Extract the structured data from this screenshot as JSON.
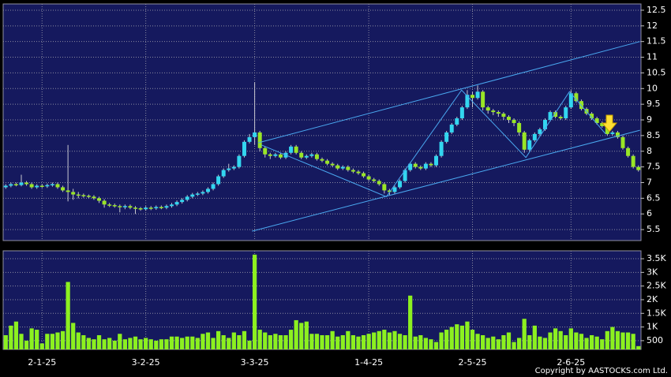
{
  "chart_data": [
    {
      "type": "candlestick",
      "categories": [
        null,
        null,
        null,
        null,
        null,
        null,
        null,
        "2-1-25",
        null,
        null,
        null,
        null,
        null,
        null,
        null,
        null,
        null,
        null,
        null,
        null,
        null,
        null,
        null,
        null,
        null,
        null,
        null,
        "3-2-25",
        null,
        null,
        null,
        null,
        null,
        null,
        null,
        null,
        null,
        null,
        null,
        null,
        null,
        null,
        null,
        null,
        null,
        null,
        null,
        null,
        "3-3-25",
        null,
        null,
        null,
        null,
        null,
        null,
        null,
        null,
        null,
        null,
        null,
        null,
        null,
        null,
        null,
        null,
        null,
        null,
        null,
        null,
        null,
        "1-4-25",
        null,
        null,
        null,
        null,
        null,
        null,
        null,
        null,
        null,
        null,
        null,
        null,
        null,
        null,
        null,
        null,
        null,
        null,
        null,
        "2-5-25",
        null,
        null,
        null,
        null,
        null,
        null,
        null,
        null,
        null,
        null,
        null,
        null,
        null,
        null,
        null,
        null,
        null,
        null,
        "2-6-25",
        null,
        null,
        null,
        null,
        null,
        null,
        null,
        null,
        null,
        null,
        null,
        null,
        null
      ],
      "open": [
        6.85,
        6.9,
        6.95,
        6.92,
        7.0,
        6.95,
        6.85,
        6.9,
        6.88,
        6.92,
        6.95,
        6.85,
        6.75,
        6.7,
        6.62,
        6.6,
        6.58,
        6.55,
        6.5,
        6.42,
        6.3,
        6.28,
        6.25,
        6.22,
        6.25,
        6.2,
        6.18,
        6.15,
        6.2,
        6.18,
        6.22,
        6.2,
        6.25,
        6.3,
        6.38,
        6.45,
        6.55,
        6.62,
        6.65,
        6.7,
        6.8,
        6.95,
        7.2,
        7.4,
        7.45,
        7.5,
        7.85,
        8.3,
        8.45,
        8.6,
        8.1,
        7.9,
        7.85,
        7.9,
        7.8,
        7.95,
        8.15,
        7.95,
        7.8,
        7.85,
        7.9,
        7.75,
        7.7,
        7.6,
        7.55,
        7.45,
        7.5,
        7.4,
        7.35,
        7.3,
        7.2,
        7.1,
        7.05,
        6.95,
        6.75,
        6.7,
        6.85,
        7.05,
        7.4,
        7.6,
        7.5,
        7.45,
        7.6,
        7.55,
        7.85,
        8.3,
        8.6,
        8.85,
        9.05,
        9.4,
        9.8,
        9.7,
        9.9,
        9.4,
        9.3,
        9.25,
        9.2,
        9.1,
        9.0,
        8.9,
        8.6,
        8.05,
        8.35,
        8.55,
        8.7,
        9.0,
        9.25,
        9.1,
        9.05,
        9.4,
        9.85,
        9.6,
        9.35,
        9.2,
        9.05,
        8.9,
        8.8,
        8.55,
        8.6,
        8.45,
        8.1,
        7.85,
        7.5
      ],
      "high": [
        6.95,
        7.0,
        7.0,
        7.25,
        7.05,
        7.0,
        6.95,
        6.95,
        6.97,
        7.0,
        7.0,
        6.9,
        8.2,
        6.8,
        6.7,
        6.65,
        6.62,
        6.6,
        6.55,
        6.47,
        6.35,
        6.33,
        6.3,
        6.3,
        6.3,
        6.25,
        6.22,
        6.25,
        6.25,
        6.27,
        6.27,
        6.3,
        6.35,
        6.43,
        6.5,
        6.6,
        6.67,
        6.7,
        6.75,
        6.85,
        7.0,
        7.25,
        7.45,
        7.6,
        7.55,
        7.9,
        8.35,
        8.55,
        10.2,
        8.65,
        8.15,
        7.95,
        7.95,
        7.95,
        8.0,
        8.2,
        8.2,
        8.0,
        7.9,
        7.95,
        7.95,
        7.8,
        7.75,
        7.65,
        7.6,
        7.55,
        7.55,
        7.45,
        7.4,
        7.35,
        7.25,
        7.15,
        7.1,
        7.0,
        6.8,
        6.9,
        7.1,
        7.45,
        7.65,
        7.65,
        7.55,
        7.65,
        7.65,
        7.9,
        8.35,
        8.65,
        8.9,
        9.1,
        9.45,
        9.95,
        9.9,
        10.1,
        9.95,
        9.45,
        9.35,
        9.3,
        9.25,
        9.15,
        9.05,
        8.95,
        8.65,
        8.4,
        8.6,
        8.75,
        9.05,
        9.3,
        9.3,
        9.15,
        9.45,
        9.95,
        9.9,
        9.65,
        9.4,
        9.25,
        9.1,
        8.95,
        8.85,
        8.65,
        8.65,
        8.5,
        8.15,
        7.9,
        7.55
      ],
      "low": [
        6.8,
        6.85,
        6.88,
        6.88,
        6.9,
        6.8,
        6.8,
        6.83,
        6.83,
        6.87,
        6.8,
        6.7,
        6.4,
        6.45,
        6.5,
        6.52,
        6.5,
        6.45,
        6.35,
        6.2,
        6.22,
        6.2,
        6.05,
        6.15,
        6.15,
        6.0,
        6.1,
        6.1,
        6.12,
        6.13,
        6.15,
        6.15,
        6.2,
        6.25,
        6.33,
        6.4,
        6.5,
        6.57,
        6.6,
        6.65,
        6.75,
        6.9,
        7.15,
        7.35,
        7.4,
        7.45,
        7.8,
        8.25,
        8.2,
        8.0,
        7.8,
        7.75,
        7.8,
        7.75,
        7.75,
        7.9,
        7.9,
        7.75,
        7.75,
        7.8,
        7.7,
        7.65,
        7.55,
        7.5,
        7.4,
        7.4,
        7.35,
        7.3,
        7.25,
        7.15,
        7.05,
        7.0,
        6.9,
        6.65,
        6.6,
        6.65,
        6.8,
        7.0,
        7.35,
        7.45,
        7.4,
        7.4,
        7.5,
        7.5,
        7.8,
        8.25,
        8.55,
        8.8,
        9.0,
        9.35,
        9.4,
        9.65,
        9.3,
        9.2,
        9.15,
        9.1,
        9.0,
        8.9,
        8.8,
        8.5,
        7.95,
        8.0,
        8.3,
        8.5,
        8.65,
        8.95,
        9.05,
        9.0,
        9.0,
        9.35,
        9.55,
        9.3,
        9.15,
        9.0,
        8.85,
        8.75,
        8.5,
        8.5,
        8.4,
        8.05,
        7.8,
        7.45,
        7.35
      ],
      "close": [
        6.9,
        6.95,
        6.92,
        7.0,
        6.95,
        6.85,
        6.9,
        6.88,
        6.92,
        6.95,
        6.85,
        6.75,
        6.7,
        6.62,
        6.6,
        6.58,
        6.55,
        6.5,
        6.42,
        6.3,
        6.28,
        6.25,
        6.22,
        6.25,
        6.2,
        6.18,
        6.15,
        6.2,
        6.18,
        6.22,
        6.2,
        6.25,
        6.3,
        6.38,
        6.45,
        6.55,
        6.62,
        6.65,
        6.7,
        6.8,
        6.95,
        7.2,
        7.4,
        7.45,
        7.5,
        7.85,
        8.3,
        8.45,
        8.6,
        8.1,
        7.9,
        7.85,
        7.9,
        7.8,
        7.95,
        8.15,
        7.95,
        7.8,
        7.85,
        7.9,
        7.75,
        7.7,
        7.6,
        7.55,
        7.45,
        7.5,
        7.4,
        7.35,
        7.3,
        7.2,
        7.1,
        7.05,
        6.95,
        6.75,
        6.7,
        6.85,
        7.05,
        7.4,
        7.6,
        7.5,
        7.45,
        7.6,
        7.55,
        7.85,
        8.3,
        8.6,
        8.85,
        9.05,
        9.4,
        9.8,
        9.7,
        9.9,
        9.4,
        9.3,
        9.25,
        9.2,
        9.1,
        9.0,
        8.9,
        8.6,
        8.05,
        8.35,
        8.55,
        8.7,
        9.0,
        9.25,
        9.1,
        9.05,
        9.4,
        9.85,
        9.6,
        9.35,
        9.2,
        9.05,
        8.9,
        8.8,
        8.55,
        8.6,
        8.45,
        8.1,
        7.85,
        7.5,
        7.4
      ],
      "up_color": "#33d6f0",
      "down_color": "#99e626",
      "ylim": [
        5.15,
        12.7
      ],
      "yticks": [
        5.5,
        6,
        6.5,
        7,
        7.5,
        8,
        8.5,
        9,
        9.5,
        10,
        10.5,
        11,
        11.5,
        12,
        12.5
      ],
      "grid": true,
      "trendlines": [
        {
          "color": "#4aa8f0",
          "x": [
            48.7,
            122.3
          ],
          "y": [
            8.27,
            11.5
          ]
        },
        {
          "color": "#4aa8f0",
          "x": [
            47.5,
            122.3
          ],
          "y": [
            5.45,
            8.67
          ]
        },
        {
          "color": "#4aa8f0",
          "x": [
            49.3,
            73.4,
            87.9,
            100.3,
            108.7,
            115.7
          ],
          "y": [
            8.2,
            6.55,
            9.95,
            7.8,
            9.9,
            8.55
          ]
        }
      ]
    },
    {
      "type": "bar",
      "values": [
        700,
        1050,
        1200,
        750,
        500,
        950,
        900,
        400,
        750,
        750,
        800,
        850,
        2650,
        1150,
        800,
        700,
        600,
        550,
        700,
        550,
        600,
        500,
        750,
        550,
        600,
        650,
        550,
        600,
        550,
        500,
        550,
        550,
        650,
        650,
        600,
        650,
        650,
        600,
        750,
        800,
        600,
        850,
        700,
        600,
        800,
        700,
        850,
        500,
        3650,
        900,
        800,
        700,
        750,
        700,
        700,
        900,
        1250,
        1150,
        1200,
        750,
        750,
        700,
        700,
        850,
        650,
        700,
        850,
        700,
        650,
        700,
        750,
        800,
        850,
        900,
        800,
        850,
        750,
        700,
        2150,
        650,
        700,
        600,
        550,
        450,
        800,
        900,
        1000,
        1100,
        1050,
        1200,
        900,
        750,
        700,
        600,
        650,
        550,
        700,
        800,
        450,
        600,
        1300,
        700,
        1050,
        650,
        600,
        800,
        950,
        850,
        700,
        950,
        800,
        750,
        600,
        700,
        650,
        550,
        850,
        1000,
        850,
        800,
        800,
        750,
        300
      ],
      "color": "#8cf020",
      "ylim": [
        180,
        3790
      ],
      "yticks": [
        500,
        {
          "value": 1000,
          "label": "1K"
        },
        {
          "value": 1500,
          "label": "1.5K"
        },
        {
          "value": 2000,
          "label": "2K"
        },
        {
          "value": 2500,
          "label": "2.5K"
        },
        {
          "value": 3000,
          "label": "3K"
        },
        {
          "value": 3500,
          "label": "3.5K"
        }
      ],
      "grid": true
    }
  ],
  "copyright": "Copyright by AASTOCKS.com Ltd."
}
